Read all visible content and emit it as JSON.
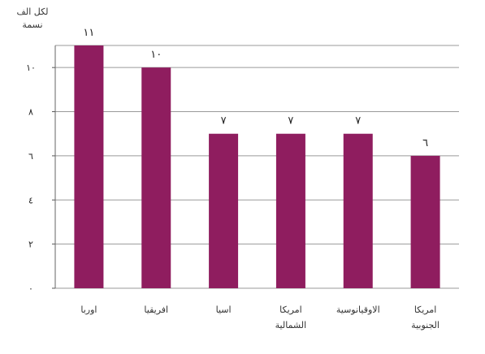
{
  "chart_data": {
    "type": "bar",
    "categories": [
      [
        "اوربا"
      ],
      [
        "افريقيا"
      ],
      [
        "اسيا"
      ],
      [
        "امريكا",
        "الشمالية"
      ],
      [
        "الاوقيانوسية"
      ],
      [
        "امريكا",
        "الجنوبية"
      ]
    ],
    "values": [
      11,
      10,
      7,
      7,
      7,
      6
    ],
    "data_labels": [
      "١١",
      "١٠",
      "٧",
      "٧",
      "٧",
      "٦"
    ],
    "y_unit_label": [
      "لكل الف",
      "نسمة"
    ],
    "ylim": [
      0,
      11
    ],
    "yticks": [
      {
        "value": 0,
        "label": "٠"
      },
      {
        "value": 2,
        "label": "٢"
      },
      {
        "value": 4,
        "label": "٤"
      },
      {
        "value": 6,
        "label": "٦"
      },
      {
        "value": 8,
        "label": "٨"
      },
      {
        "value": 10,
        "label": "١٠"
      }
    ],
    "grid": true,
    "bar_color": "#8f1d5f",
    "grid_color": "#9a9a9a"
  }
}
